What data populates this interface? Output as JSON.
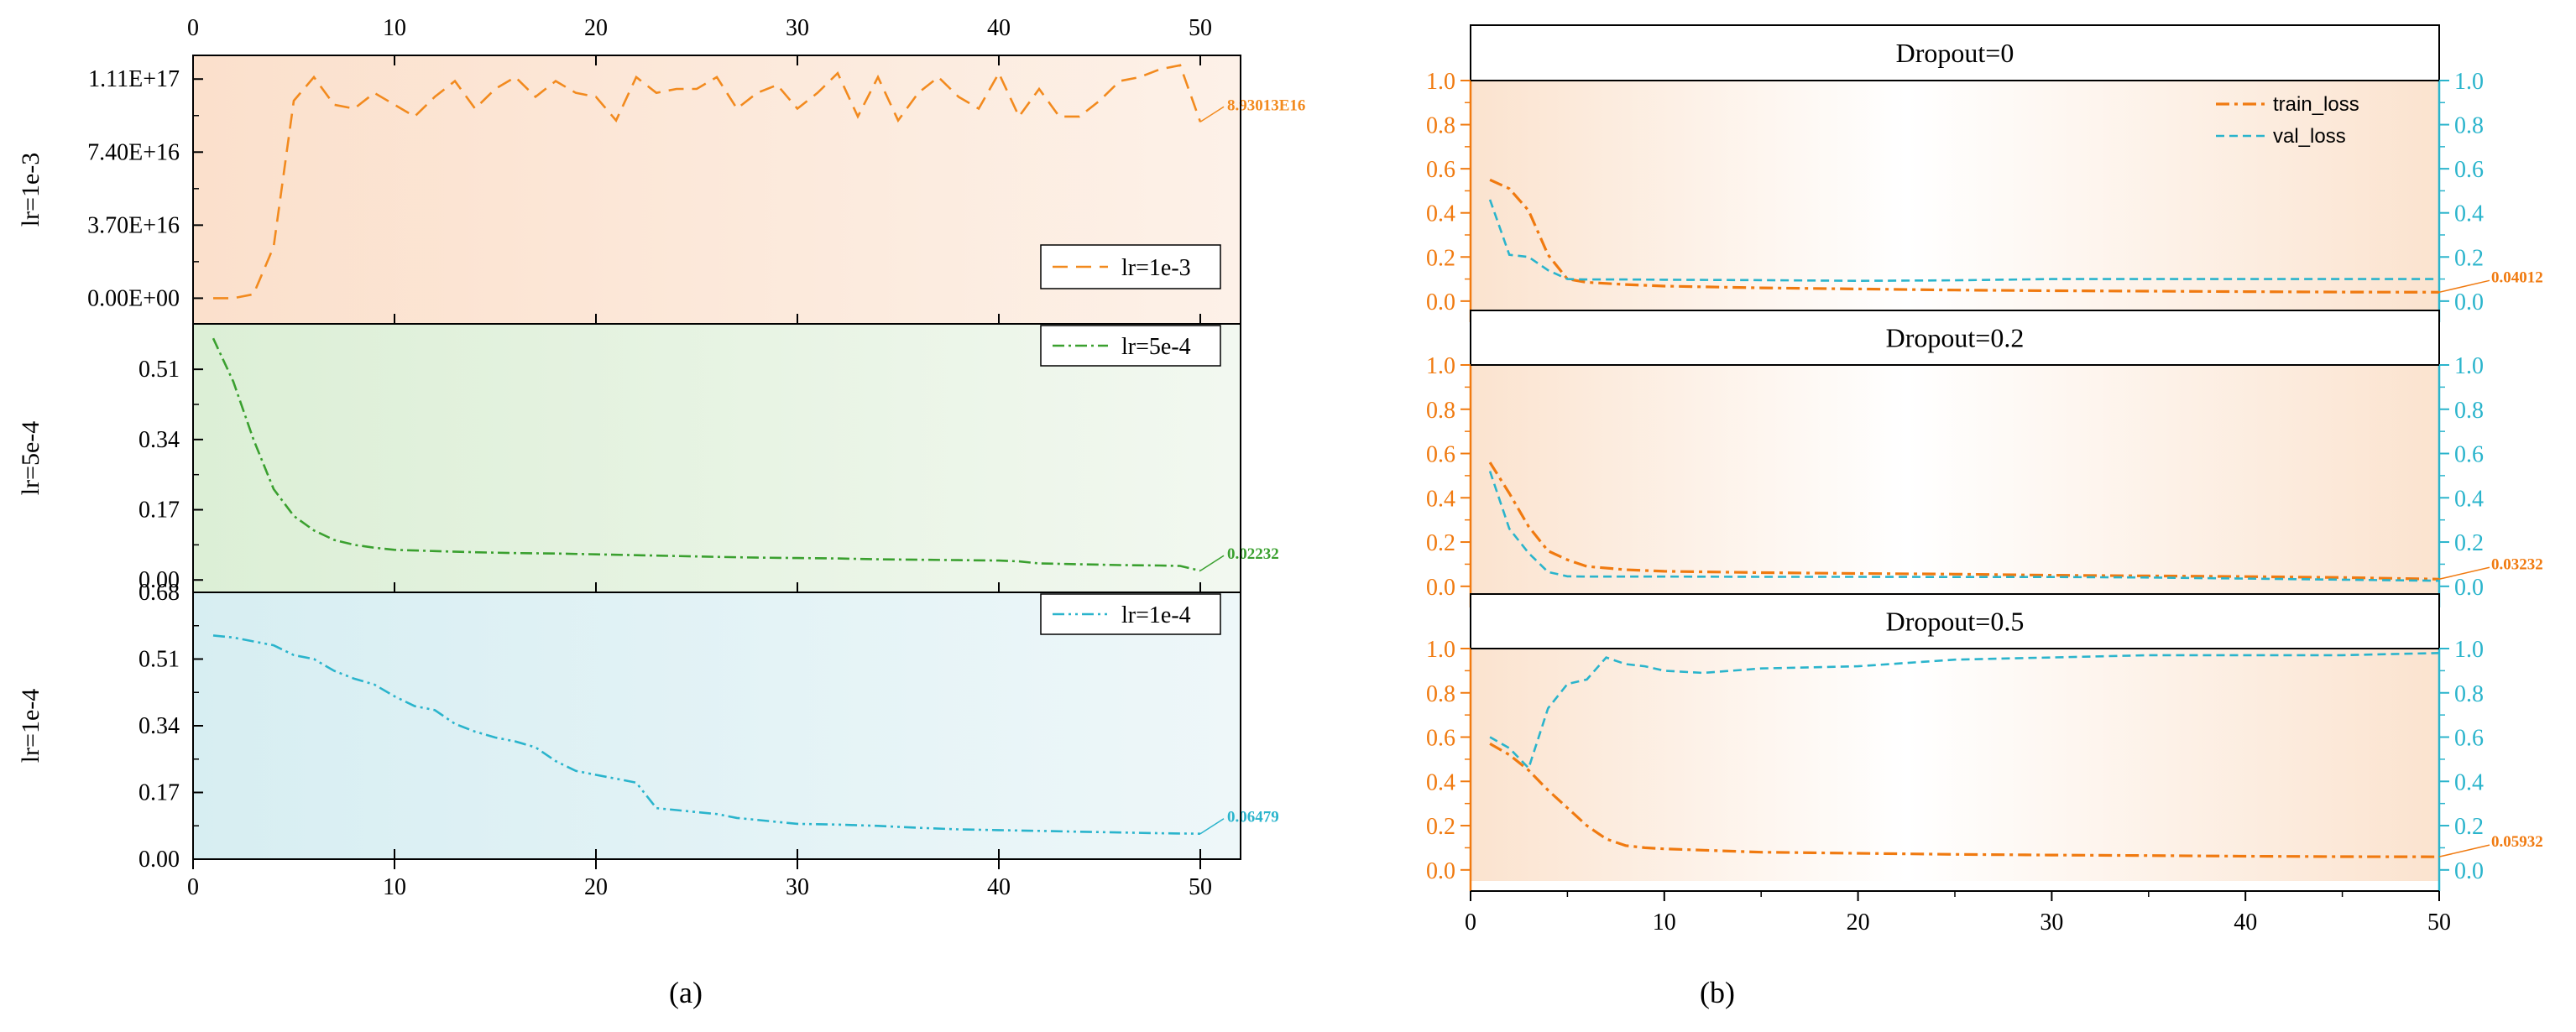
{
  "chart_data": [
    {
      "id": "a1",
      "type": "line",
      "panel": "a",
      "ylabel": "lr=1e-3",
      "color": "#f28a1e",
      "bg": "#fbe3cf",
      "dash": "18,10",
      "xlim": [
        0,
        52
      ],
      "ylim": [
        -1.3e+16,
        1.23e+17
      ],
      "yticks": [
        0,
        3.7e+16,
        7.4e+16,
        1.11e+17
      ],
      "ytick_labels": [
        "0.00E+00",
        "3.70E+16",
        "7.40E+16",
        "1.11E+17"
      ],
      "legend_label": "lr=1e-3",
      "end_label": "8.93013E16",
      "x": [
        1,
        2,
        3,
        4,
        5,
        6,
        7,
        8,
        9,
        10,
        11,
        12,
        13,
        14,
        15,
        16,
        17,
        18,
        19,
        20,
        21,
        22,
        23,
        24,
        25,
        26,
        27,
        28,
        29,
        30,
        31,
        32,
        33,
        34,
        35,
        36,
        37,
        38,
        39,
        40,
        41,
        42,
        43,
        44,
        45,
        46,
        47,
        48,
        49,
        50
      ],
      "values": [
        0,
        0,
        2000000000000000.0,
        2.6e+16,
        1e+17,
        1.12e+17,
        9.8e+16,
        9.6e+16,
        1.04e+17,
        9.8e+16,
        9.2e+16,
        1.02e+17,
        1.1e+17,
        9.6e+16,
        1.06e+17,
        1.12e+17,
        1.02e+17,
        1.1e+17,
        1.04e+17,
        1.02e+17,
        9e+16,
        1.12e+17,
        1.04e+17,
        1.06e+17,
        1.06e+17,
        1.12e+17,
        9.6e+16,
        1.04e+17,
        1.08e+17,
        9.6e+16,
        1.04e+17,
        1.14e+17,
        9.2e+16,
        1.12e+17,
        9e+16,
        1.04e+17,
        1.12e+17,
        1.02e+17,
        9.6e+16,
        1.14e+17,
        9.2e+16,
        1.06e+17,
        9.2e+16,
        9.2e+16,
        1e+17,
        1.1e+17,
        1.12e+17,
        1.16e+17,
        1.18e+17,
        8.93013e+16
      ]
    },
    {
      "id": "a2",
      "type": "line",
      "panel": "a",
      "ylabel": "lr=5e-4",
      "color": "#3aa02f",
      "bg": "#dff0da",
      "dash": "14,5,3,5",
      "xlim": [
        0,
        52
      ],
      "ylim": [
        -0.03,
        0.62
      ],
      "yticks": [
        0,
        0.17,
        0.34,
        0.51
      ],
      "ytick_labels": [
        "0.00",
        "0.17",
        "0.34",
        "0.51"
      ],
      "legend_label": "lr=5e-4",
      "end_label": "0.02232",
      "x": [
        1,
        2,
        3,
        4,
        5,
        6,
        7,
        8,
        9,
        10,
        12,
        14,
        16,
        18,
        20,
        22,
        24,
        26,
        28,
        30,
        32,
        34,
        36,
        38,
        40,
        41,
        42,
        44,
        46,
        48,
        49,
        50
      ],
      "values": [
        0.585,
        0.48,
        0.34,
        0.22,
        0.155,
        0.12,
        0.097,
        0.085,
        0.078,
        0.073,
        0.07,
        0.067,
        0.065,
        0.064,
        0.062,
        0.06,
        0.058,
        0.056,
        0.054,
        0.053,
        0.052,
        0.05,
        0.049,
        0.048,
        0.047,
        0.045,
        0.04,
        0.038,
        0.036,
        0.035,
        0.034,
        0.02232
      ]
    },
    {
      "id": "a3",
      "type": "line",
      "panel": "a",
      "ylabel": "lr=1e-4",
      "color": "#2ab4cc",
      "bg": "#dcf0f3",
      "dash": "14,5,3,5,3,5",
      "xlim": [
        0,
        52
      ],
      "ylim": [
        0,
        0.68
      ],
      "yticks": [
        0,
        0.17,
        0.34,
        0.51,
        0.68
      ],
      "ytick_labels": [
        "0.00",
        "0.17",
        "0.34",
        "0.51",
        "0.68"
      ],
      "legend_label": "lr=1e-4",
      "end_label": "0.06479",
      "x": [
        1,
        2,
        3,
        4,
        5,
        6,
        7,
        8,
        9,
        10,
        11,
        12,
        13,
        14,
        15,
        16,
        17,
        18,
        19,
        20,
        21,
        22,
        23,
        24,
        25,
        26,
        27,
        28,
        29,
        30,
        32,
        34,
        36,
        38,
        40,
        42,
        44,
        46,
        48,
        50
      ],
      "values": [
        0.57,
        0.565,
        0.555,
        0.545,
        0.52,
        0.51,
        0.48,
        0.46,
        0.445,
        0.415,
        0.39,
        0.38,
        0.345,
        0.325,
        0.31,
        0.3,
        0.285,
        0.25,
        0.225,
        0.215,
        0.205,
        0.195,
        0.13,
        0.125,
        0.12,
        0.115,
        0.105,
        0.1,
        0.095,
        0.09,
        0.088,
        0.085,
        0.08,
        0.076,
        0.074,
        0.072,
        0.07,
        0.068,
        0.066,
        0.06479
      ]
    }
  ],
  "panel_b": {
    "legend": {
      "train_label": "train_loss",
      "val_label": "val_loss"
    },
    "train_color": "#f07a10",
    "val_color": "#2ab4cc",
    "bg": "#fbe3cf",
    "xlim": [
      0,
      50
    ],
    "ylim": [
      -0.05,
      1.0
    ],
    "yticks": [
      0,
      0.2,
      0.4,
      0.6,
      0.8,
      1.0
    ],
    "ytick_labels": [
      "0.0",
      "0.2",
      "0.4",
      "0.6",
      "0.8",
      "1.0"
    ],
    "subplots": [
      {
        "title": "Dropout=0",
        "end_label": "0.04012",
        "train": {
          "x": [
            1,
            2,
            3,
            4,
            5,
            6,
            8,
            10,
            15,
            20,
            25,
            30,
            35,
            40,
            45,
            50
          ],
          "y": [
            0.55,
            0.51,
            0.41,
            0.21,
            0.1,
            0.085,
            0.075,
            0.068,
            0.06,
            0.055,
            0.05,
            0.047,
            0.045,
            0.043,
            0.041,
            0.04012
          ]
        },
        "val": {
          "x": [
            1,
            2,
            3,
            4,
            5,
            6,
            8,
            10,
            15,
            20,
            25,
            30,
            35,
            40,
            45,
            50
          ],
          "y": [
            0.46,
            0.21,
            0.2,
            0.14,
            0.1,
            0.098,
            0.098,
            0.097,
            0.095,
            0.092,
            0.094,
            0.1,
            0.1,
            0.1,
            0.1,
            0.1
          ]
        }
      },
      {
        "title": "Dropout=0.2",
        "end_label": "0.03232",
        "train": {
          "x": [
            1,
            2,
            3,
            4,
            5,
            6,
            8,
            10,
            15,
            20,
            25,
            30,
            35,
            40,
            45,
            50
          ],
          "y": [
            0.56,
            0.42,
            0.27,
            0.16,
            0.12,
            0.09,
            0.075,
            0.068,
            0.062,
            0.058,
            0.055,
            0.05,
            0.047,
            0.044,
            0.04,
            0.03232
          ]
        },
        "val": {
          "x": [
            1,
            2,
            3,
            4,
            5,
            6,
            8,
            10,
            15,
            20,
            25,
            30,
            35,
            40,
            45,
            50
          ],
          "y": [
            0.52,
            0.26,
            0.15,
            0.065,
            0.045,
            0.044,
            0.044,
            0.044,
            0.043,
            0.043,
            0.042,
            0.042,
            0.04,
            0.035,
            0.03,
            0.025
          ]
        }
      },
      {
        "title": "Dropout=0.5",
        "end_label": "0.05932",
        "train": {
          "x": [
            1,
            2,
            3,
            4,
            5,
            6,
            7,
            8,
            9,
            10,
            15,
            20,
            25,
            30,
            35,
            40,
            45,
            50
          ],
          "y": [
            0.57,
            0.52,
            0.45,
            0.36,
            0.28,
            0.2,
            0.14,
            0.11,
            0.1,
            0.095,
            0.08,
            0.075,
            0.07,
            0.067,
            0.065,
            0.062,
            0.06,
            0.05932
          ]
        },
        "val": {
          "x": [
            1,
            2,
            3,
            4,
            5,
            6,
            7,
            8,
            9,
            10,
            12,
            15,
            20,
            25,
            30,
            35,
            40,
            45,
            50
          ],
          "y": [
            0.6,
            0.55,
            0.46,
            0.73,
            0.84,
            0.86,
            0.96,
            0.93,
            0.92,
            0.9,
            0.89,
            0.91,
            0.92,
            0.95,
            0.96,
            0.97,
            0.97,
            0.97,
            0.98
          ]
        }
      }
    ]
  },
  "axes": {
    "a_xticks": [
      0,
      10,
      20,
      30,
      40,
      50
    ],
    "b_xticks": [
      0,
      10,
      20,
      30,
      40,
      50
    ]
  },
  "captions": {
    "a": "(a)",
    "b": "(b)"
  }
}
